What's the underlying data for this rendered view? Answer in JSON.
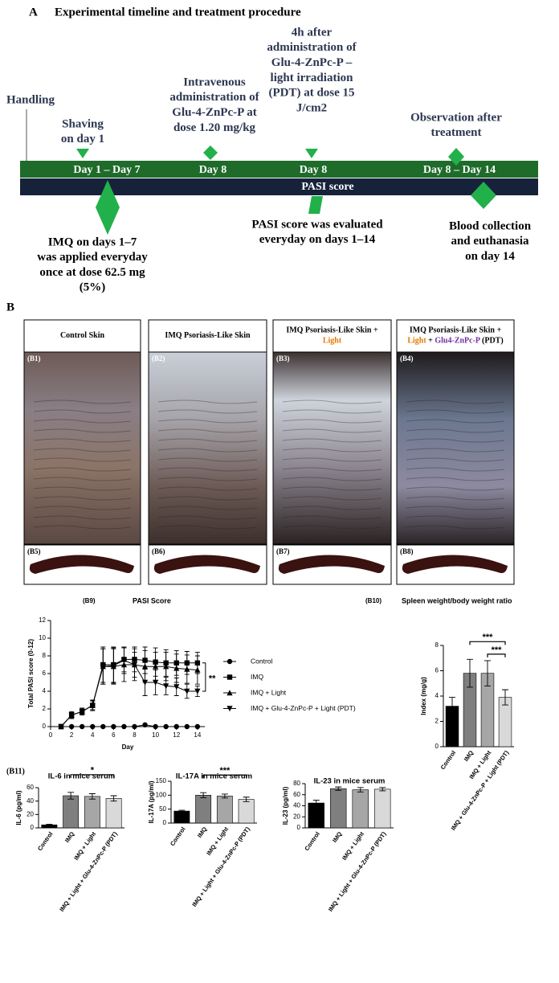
{
  "panel_a": {
    "label": "A",
    "title": "Experimental timeline and treatment procedure",
    "handling": "Handling",
    "above": [
      [
        "Shaving",
        "on day 1"
      ],
      [
        "Intravenous",
        "administration of",
        "Glu-4-ZnPc-P at",
        "dose 1.20 mg/kg"
      ],
      [
        "4h after",
        "administration of",
        "Glu-4-ZnPc-P –",
        "light irradiation",
        "(PDT) at dose 15",
        "J/cm2"
      ],
      [
        "Observation after",
        "treatment"
      ]
    ],
    "bar_labels": [
      "Day 1  –  Day 7",
      "Day 8",
      "Day 8",
      "Day 8 – Day 14"
    ],
    "pasi_bar": "PASI score",
    "below": [
      [
        "IMQ on days 1–7",
        "was applied everyday",
        "once at dose 62.5 mg",
        "(5%)"
      ],
      [
        "PASI score was evaluated",
        "everyday on days 1–14"
      ],
      [
        "Blood collection",
        "and euthanasia",
        "on day 14"
      ]
    ]
  },
  "panel_b": {
    "label": "B",
    "photos": [
      {
        "tag": "(B1)",
        "spleen_tag": "(B5)",
        "title": [
          [
            {
              "text": "Control Skin",
              "color": "#000000"
            }
          ]
        ]
      },
      {
        "tag": "(B2)",
        "spleen_tag": "(B6)",
        "title": [
          [
            {
              "text": "IMQ Psoriasis-Like Skin",
              "color": "#000000"
            }
          ]
        ]
      },
      {
        "tag": "(B3)",
        "spleen_tag": "(B7)",
        "title": [
          [
            {
              "text": "IMQ Psoriasis-Like Skin +",
              "color": "#000000"
            }
          ],
          [
            {
              "text": "Light",
              "color": "#e07b00"
            }
          ]
        ]
      },
      {
        "tag": "(B4)",
        "spleen_tag": "(B8)",
        "title": [
          [
            {
              "text": "IMQ Psoriasis-Like Skin +",
              "color": "#000000"
            }
          ],
          [
            {
              "text": "Light",
              "color": "#e07b00"
            },
            {
              "text": " + ",
              "color": "#000000"
            },
            {
              "text": "Glu4-ZnPc-P",
              "color": "#7030a0"
            },
            {
              "text": " (PDT)",
              "color": "#000000"
            }
          ]
        ]
      }
    ],
    "b11_label": "(B11)"
  },
  "chart_data": [
    {
      "type": "line",
      "panel_label": "(B9)",
      "title": "PASI Score",
      "x_label": "Day",
      "y_label": "Total PASI score  (0-12)",
      "x": [
        1,
        2,
        3,
        4,
        5,
        6,
        7,
        8,
        9,
        10,
        11,
        12,
        13,
        14
      ],
      "xlim": [
        0,
        14.7
      ],
      "xticks": [
        0,
        2,
        4,
        6,
        8,
        10,
        12,
        14
      ],
      "ylim": [
        0,
        12
      ],
      "yticks": [
        0,
        2,
        4,
        6,
        8,
        10,
        12
      ],
      "annotation": "**",
      "series": [
        {
          "name": "Control",
          "color": "#000000",
          "marker": "circle",
          "values": [
            0,
            0,
            0,
            0,
            0,
            0,
            0,
            0,
            0.2,
            0,
            0,
            0,
            0,
            0
          ]
        },
        {
          "name": "IMQ",
          "color": "#000000",
          "marker": "square",
          "values": [
            0,
            1.3,
            1.7,
            2.4,
            7,
            7,
            7.6,
            7.6,
            7.5,
            7.3,
            7.2,
            7.2,
            7.2,
            7.2
          ],
          "errors": [
            0,
            0.4,
            0.4,
            0.6,
            2,
            2,
            1.4,
            1.4,
            1.5,
            1.6,
            1.5,
            1.4,
            1.3,
            1.2
          ]
        },
        {
          "name": "IMQ + Light",
          "color": "#000000",
          "marker": "triangle",
          "values": [
            0,
            1.3,
            1.7,
            2.4,
            6.8,
            6.8,
            7,
            7,
            6.8,
            6.8,
            6.8,
            6.6,
            6.5,
            6.4
          ],
          "errors": [
            0,
            0.3,
            0.3,
            0.5,
            2,
            2,
            1.9,
            1.8,
            1.8,
            1.6,
            1.6,
            1.6,
            1.6,
            1.6
          ]
        },
        {
          "name": "IMQ + Glu-4-ZnPc-P + Light (PDT)",
          "color": "#000000",
          "marker": "triangle-down",
          "values": [
            0,
            1.3,
            1.7,
            2.4,
            6.8,
            6.9,
            7.5,
            7,
            5,
            5,
            4.6,
            4.5,
            4,
            4
          ],
          "errors": [
            0,
            0.3,
            0.3,
            0.5,
            2,
            2,
            1.5,
            1.4,
            1.5,
            1.4,
            1,
            1,
            0.8,
            0.6
          ]
        }
      ]
    },
    {
      "type": "bar",
      "panel_label": "(B10)",
      "title": "Spleen weight/body weight ratio",
      "y_label": "Index (mg/g)",
      "categories": [
        "Control",
        "IMQ",
        "IMQ + Light",
        "IMQ + Glu-4-ZnPc-P + Light (PDT)"
      ],
      "values": [
        3.2,
        5.8,
        5.8,
        3.9
      ],
      "errors": [
        0.7,
        1.1,
        1.0,
        0.6
      ],
      "colors": [
        "#000000",
        "#7f7f7f",
        "#a6a6a6",
        "#d9d9d9"
      ],
      "ylim": [
        0,
        8
      ],
      "yticks": [
        0,
        2,
        4,
        6,
        8
      ],
      "brackets": [
        {
          "from": 1,
          "to": 3,
          "text": "***"
        },
        {
          "from": 2,
          "to": 3,
          "text": "***"
        }
      ]
    },
    {
      "type": "bar",
      "title": "IL-6 in mice serum",
      "y_label": "IL-6 (pg/ml)",
      "categories": [
        "Control",
        "IMQ",
        "IMQ + Light",
        "IMQ + Light + Glu-4-ZnPc-P (PDT)"
      ],
      "values": [
        4.5,
        48,
        47,
        44
      ],
      "errors": [
        1,
        5,
        4,
        4
      ],
      "colors": [
        "#000000",
        "#7f7f7f",
        "#a6a6a6",
        "#d9d9d9"
      ],
      "ylim": [
        0,
        60
      ],
      "yticks": [
        0,
        20,
        40,
        60
      ],
      "brackets": [
        {
          "from": 1,
          "to": 3,
          "text": "*"
        }
      ]
    },
    {
      "type": "bar",
      "title": "IL-17A in mice serum",
      "y_label": "IL-17A (pg/ml)",
      "categories": [
        "Control",
        "IMQ",
        "IMQ + Light",
        "IMQ + Light + Glu-4-ZnPc-P (PDT)"
      ],
      "values": [
        43,
        100,
        97,
        85
      ],
      "errors": [
        3,
        9,
        7,
        8
      ],
      "colors": [
        "#000000",
        "#7f7f7f",
        "#a6a6a6",
        "#d9d9d9"
      ],
      "ylim": [
        0,
        150
      ],
      "yticks": [
        0,
        50,
        100,
        150
      ],
      "brackets": [
        {
          "from": 1,
          "to": 3,
          "text": "***"
        }
      ]
    },
    {
      "type": "bar",
      "title": "IL-23 in mice serum",
      "y_label": "IL-23 (pg/ml)",
      "categories": [
        "Control",
        "IMQ",
        "IMQ + Light",
        "IMQ + Light + Glu-4-ZnPc-P (PDT)"
      ],
      "values": [
        45,
        71,
        69,
        70
      ],
      "errors": [
        5,
        3,
        4,
        3
      ],
      "colors": [
        "#000000",
        "#7f7f7f",
        "#a6a6a6",
        "#d9d9d9"
      ],
      "ylim": [
        0,
        80
      ],
      "yticks": [
        0,
        20,
        40,
        60,
        80
      ],
      "brackets": []
    }
  ]
}
